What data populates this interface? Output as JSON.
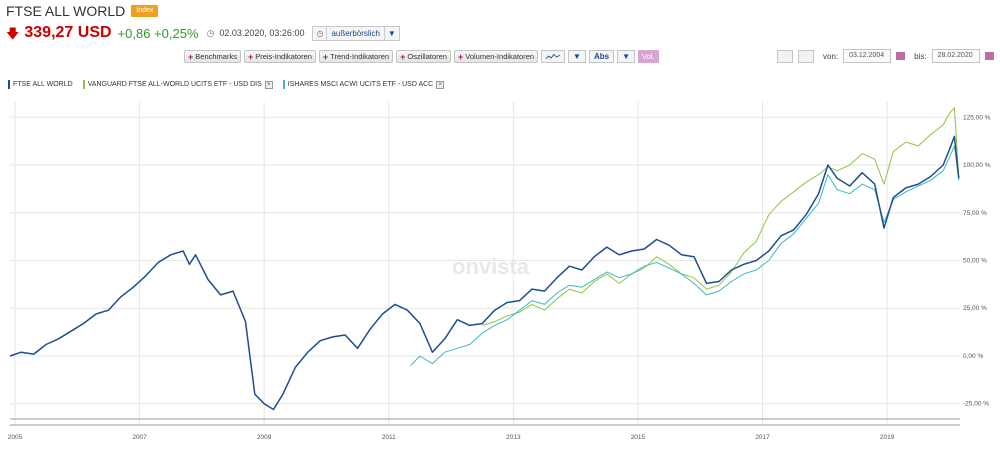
{
  "header": {
    "title": "FTSE ALL WORLD",
    "badge": "Index",
    "price": "339,27 USD",
    "change": "+0,86 +0,25%",
    "timestamp": "02.03.2020, 03:26:00",
    "market": "außerbörslich"
  },
  "toolbar": {
    "benchmarks": "Benchmarks",
    "price_indicators": "Preis-Indikatoren",
    "trend_indicators": "Trend-Indikatoren",
    "oscillators": "Oszillatoren",
    "volume_indicators": "Volumen-Indikatoren",
    "scale": "Abs",
    "vol": "Vol."
  },
  "date_range": {
    "from_label": "von:",
    "from_value": "03.12.2004",
    "to_label": "bis:",
    "to_value": "28.02.2020"
  },
  "watermark": "onvista",
  "colors": {
    "ftse": "#1f4e8c",
    "vanguard": "#8dc63f",
    "ishares": "#3fb6c8",
    "price_down": "#cc0000",
    "change_up": "#2e9a2e",
    "badge": "#f0a020"
  },
  "chart_data": {
    "type": "line",
    "ylim": [
      -33,
      133
    ],
    "xlim": [
      2004.92,
      2020.17
    ],
    "yticks": [
      -25,
      0,
      25,
      50,
      75,
      100,
      125
    ],
    "ytick_labels": [
      "-25,00 %",
      "0,00 %",
      "25,00 %",
      "50,00 %",
      "75,00 %",
      "100,00 %",
      "125,00 %"
    ],
    "xticks": [
      2005,
      2007,
      2009,
      2011,
      2013,
      2015,
      2017,
      2019
    ],
    "xtick_labels": [
      "2005",
      "2007",
      "2009",
      "2011",
      "2013",
      "2015",
      "2017",
      "2019"
    ],
    "series": [
      {
        "name": "FTSE ALL WORLD",
        "x": [
          2004.92,
          2005.1,
          2005.3,
          2005.5,
          2005.7,
          2005.9,
          2006.1,
          2006.3,
          2006.5,
          2006.7,
          2006.9,
          2007.1,
          2007.3,
          2007.5,
          2007.7,
          2007.8,
          2007.9,
          2008.1,
          2008.3,
          2008.5,
          2008.7,
          2008.85,
          2009.0,
          2009.15,
          2009.3,
          2009.5,
          2009.7,
          2009.9,
          2010.1,
          2010.3,
          2010.5,
          2010.7,
          2010.9,
          2011.1,
          2011.3,
          2011.5,
          2011.7,
          2011.9,
          2012.1,
          2012.3,
          2012.5,
          2012.7,
          2012.9,
          2013.1,
          2013.3,
          2013.5,
          2013.7,
          2013.9,
          2014.1,
          2014.3,
          2014.5,
          2014.7,
          2014.9,
          2015.1,
          2015.3,
          2015.5,
          2015.7,
          2015.9,
          2016.1,
          2016.3,
          2016.5,
          2016.7,
          2016.9,
          2017.1,
          2017.3,
          2017.5,
          2017.7,
          2017.9,
          2018.05,
          2018.2,
          2018.4,
          2018.6,
          2018.8,
          2018.95,
          2019.1,
          2019.3,
          2019.5,
          2019.7,
          2019.9,
          2020.0,
          2020.08,
          2020.15
        ],
        "y": [
          0,
          2,
          1,
          6,
          9,
          13,
          17,
          22,
          24,
          31,
          36,
          42,
          49,
          53,
          55,
          48,
          53,
          40,
          32,
          34,
          18,
          -20,
          -25,
          -28,
          -20,
          -6,
          2,
          8,
          10,
          11,
          4,
          14,
          22,
          27,
          24,
          17,
          2,
          9,
          19,
          16,
          17,
          24,
          28,
          29,
          35,
          34,
          41,
          47,
          45,
          52,
          57,
          53,
          55,
          56,
          61,
          58,
          53,
          52,
          38,
          39,
          45,
          48,
          50,
          55,
          63,
          66,
          74,
          85,
          100,
          93,
          89,
          96,
          90,
          67,
          83,
          88,
          90,
          94,
          100,
          108,
          115,
          93
        ]
      },
      {
        "name": "VANGUARD FTSE ALL-WORLD UCITS ETF - USD DIS",
        "x": [
          2012.5,
          2012.7,
          2012.9,
          2013.1,
          2013.3,
          2013.5,
          2013.7,
          2013.9,
          2014.1,
          2014.3,
          2014.5,
          2014.7,
          2014.9,
          2015.1,
          2015.3,
          2015.5,
          2015.7,
          2015.9,
          2016.1,
          2016.3,
          2016.5,
          2016.7,
          2016.9,
          2017.1,
          2017.3,
          2017.5,
          2017.7,
          2017.9,
          2018.05,
          2018.2,
          2018.4,
          2018.6,
          2018.8,
          2018.95,
          2019.1,
          2019.3,
          2019.5,
          2019.7,
          2019.9,
          2020.0,
          2020.08,
          2020.15
        ],
        "y": [
          16,
          18,
          21,
          23,
          27,
          24,
          30,
          35,
          33,
          39,
          43,
          38,
          43,
          46,
          52,
          48,
          43,
          41,
          35,
          37,
          44,
          54,
          60,
          74,
          81,
          86,
          91,
          95,
          99,
          97,
          100,
          106,
          103,
          90,
          107,
          112,
          110,
          116,
          121,
          127,
          130,
          93
        ]
      },
      {
        "name": "ISHARES MSCI ACWI UCITS ETF - USD ACC",
        "x": [
          2011.35,
          2011.5,
          2011.7,
          2011.9,
          2012.1,
          2012.3,
          2012.5,
          2012.7,
          2012.9,
          2013.1,
          2013.3,
          2013.5,
          2013.7,
          2013.9,
          2014.1,
          2014.3,
          2014.5,
          2014.7,
          2014.9,
          2015.1,
          2015.3,
          2015.5,
          2015.7,
          2015.9,
          2016.1,
          2016.3,
          2016.5,
          2016.7,
          2016.9,
          2017.1,
          2017.3,
          2017.5,
          2017.7,
          2017.9,
          2018.05,
          2018.2,
          2018.4,
          2018.6,
          2018.8,
          2018.95,
          2019.1,
          2019.3,
          2019.5,
          2019.7,
          2019.9,
          2020.0,
          2020.08,
          2020.15
        ],
        "y": [
          -5,
          0,
          -4,
          2,
          4,
          6,
          12,
          16,
          19,
          24,
          29,
          27,
          33,
          37,
          36,
          40,
          44,
          41,
          43,
          47,
          49,
          46,
          43,
          38,
          32,
          34,
          39,
          43,
          45,
          50,
          59,
          64,
          72,
          80,
          95,
          87,
          85,
          90,
          87,
          70,
          82,
          86,
          89,
          92,
          97,
          104,
          110,
          92
        ]
      }
    ]
  }
}
